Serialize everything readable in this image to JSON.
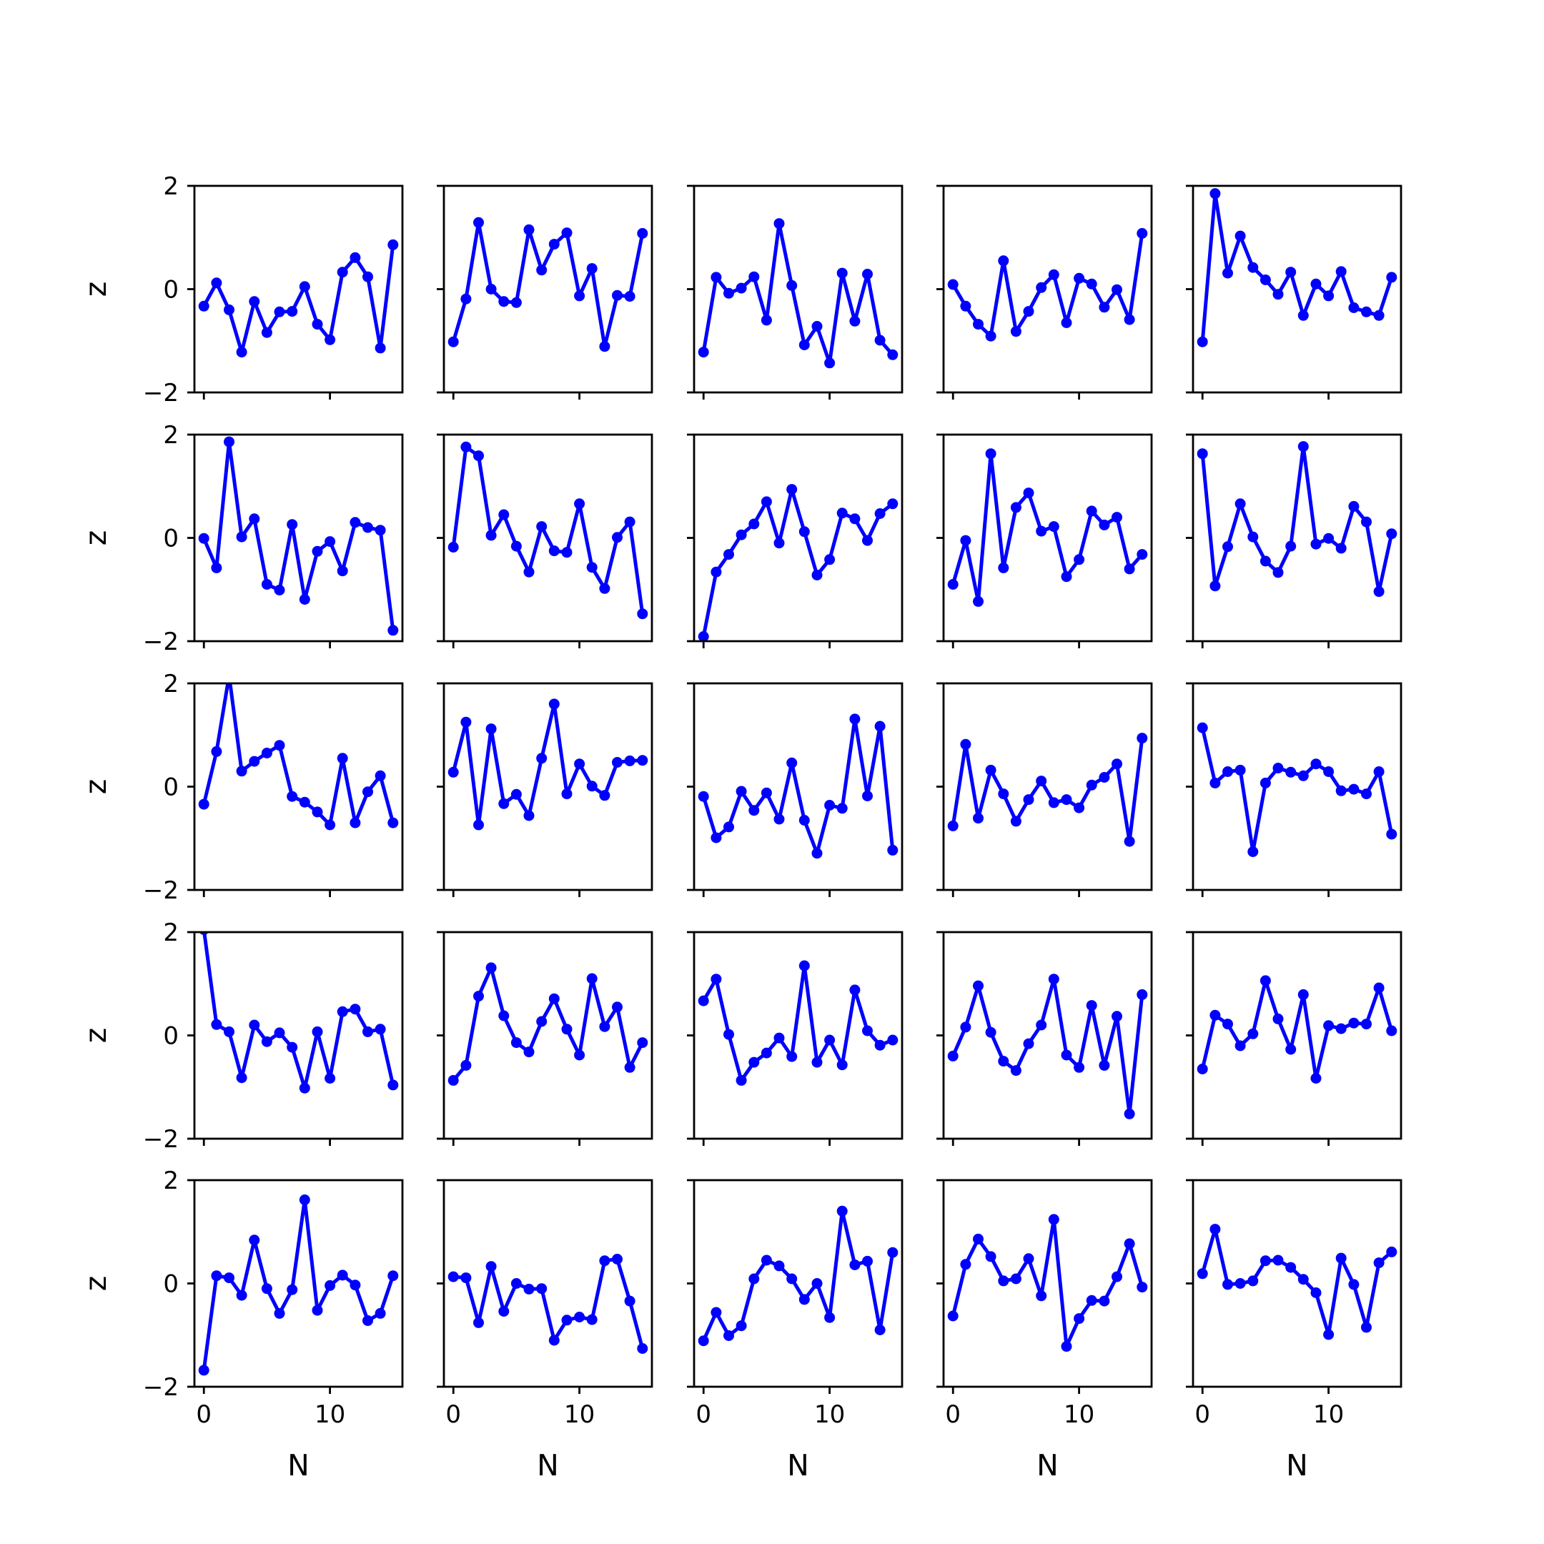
{
  "chart_data": {
    "type": "line",
    "layout": "5x5 grid of small multiples",
    "shared_x": true,
    "shared_y": true,
    "xlabel": "N",
    "ylabel": "z",
    "xlim": [
      -0.75,
      15.75
    ],
    "ylim": [
      -2,
      2
    ],
    "xticks": [
      0,
      10
    ],
    "xtick_labels": [
      "0",
      "10"
    ],
    "yticks": [
      2,
      0,
      -2
    ],
    "ytick_labels": [
      "2",
      "0",
      "−2"
    ],
    "color": "#0000ff",
    "marker": "circle",
    "grid": false,
    "x": [
      0,
      1,
      2,
      3,
      4,
      5,
      6,
      7,
      8,
      9,
      10,
      11,
      12,
      13,
      14,
      15
    ],
    "panels": [
      [
        -0.33,
        0.12,
        -0.4,
        -1.22,
        -0.24,
        -0.84,
        -0.44,
        -0.43,
        0.05,
        -0.68,
        -0.98,
        0.33,
        0.61,
        0.24,
        -1.14,
        0.86
      ],
      [
        -1.02,
        -0.19,
        1.29,
        0.0,
        -0.24,
        -0.26,
        1.15,
        0.37,
        0.87,
        1.09,
        -0.13,
        0.4,
        -1.11,
        -0.12,
        -0.14,
        1.08
      ],
      [
        -1.22,
        0.23,
        -0.08,
        0.02,
        0.24,
        -0.6,
        1.27,
        0.07,
        -1.08,
        -0.72,
        -1.43,
        0.31,
        -0.62,
        0.29,
        -0.99,
        -1.27
      ],
      [
        0.09,
        -0.33,
        -0.68,
        -0.91,
        0.55,
        -0.82,
        -0.43,
        0.03,
        0.28,
        -0.65,
        0.21,
        0.1,
        -0.35,
        -0.01,
        -0.59,
        1.08
      ],
      [
        -1.02,
        1.85,
        0.31,
        1.03,
        0.42,
        0.18,
        -0.1,
        0.33,
        -0.51,
        0.1,
        -0.13,
        0.34,
        -0.36,
        -0.44,
        -0.51,
        0.23
      ],
      [
        -0.01,
        -0.58,
        1.86,
        0.02,
        0.37,
        -0.9,
        -1.01,
        0.26,
        -1.19,
        -0.26,
        -0.07,
        -0.64,
        0.3,
        0.2,
        0.15,
        -1.79
      ],
      [
        -0.18,
        1.76,
        1.59,
        0.05,
        0.45,
        -0.16,
        -0.66,
        0.22,
        -0.25,
        -0.28,
        0.66,
        -0.57,
        -0.98,
        0.01,
        0.31,
        -1.47
      ],
      [
        -1.91,
        -0.66,
        -0.32,
        0.06,
        0.27,
        0.7,
        -0.1,
        0.94,
        0.12,
        -0.72,
        -0.42,
        0.48,
        0.37,
        -0.05,
        0.47,
        0.66
      ],
      [
        -0.9,
        -0.05,
        -1.23,
        1.63,
        -0.58,
        0.59,
        0.87,
        0.13,
        0.22,
        -0.75,
        -0.42,
        0.52,
        0.25,
        0.4,
        -0.6,
        -0.32
      ],
      [
        1.63,
        -0.93,
        -0.17,
        0.66,
        0.02,
        -0.45,
        -0.67,
        -0.16,
        1.77,
        -0.12,
        -0.01,
        -0.2,
        0.61,
        0.31,
        -1.04,
        0.08
      ],
      [
        -0.34,
        0.68,
        2.15,
        0.3,
        0.49,
        0.65,
        0.8,
        -0.19,
        -0.3,
        -0.49,
        -0.74,
        0.55,
        -0.7,
        -0.1,
        0.21,
        -0.7
      ],
      [
        0.28,
        1.25,
        -0.74,
        1.12,
        -0.33,
        -0.15,
        -0.56,
        0.55,
        1.6,
        -0.14,
        0.44,
        0.01,
        -0.17,
        0.47,
        0.5,
        0.51
      ],
      [
        -0.19,
        -0.99,
        -0.78,
        -0.09,
        -0.46,
        -0.12,
        -0.63,
        0.46,
        -0.65,
        -1.29,
        -0.36,
        -0.42,
        1.31,
        -0.18,
        1.17,
        -1.23
      ],
      [
        -0.76,
        0.82,
        -0.61,
        0.32,
        -0.14,
        -0.67,
        -0.25,
        0.11,
        -0.31,
        -0.25,
        -0.41,
        0.03,
        0.18,
        0.44,
        -1.06,
        0.94
      ],
      [
        1.14,
        0.07,
        0.29,
        0.32,
        -1.26,
        0.07,
        0.36,
        0.28,
        0.21,
        0.44,
        0.29,
        -0.08,
        -0.05,
        -0.14,
        0.29,
        -0.92
      ],
      [
        2.05,
        0.21,
        0.07,
        -0.82,
        0.2,
        -0.12,
        0.05,
        -0.23,
        -1.02,
        0.07,
        -0.83,
        0.46,
        0.51,
        0.07,
        0.12,
        -0.96
      ],
      [
        -0.87,
        -0.58,
        0.76,
        1.31,
        0.38,
        -0.14,
        -0.32,
        0.27,
        0.71,
        0.12,
        -0.38,
        1.1,
        0.17,
        0.55,
        -0.62,
        -0.14
      ],
      [
        0.67,
        1.09,
        0.02,
        -0.87,
        -0.52,
        -0.34,
        -0.05,
        -0.41,
        1.35,
        -0.52,
        -0.09,
        -0.57,
        0.88,
        0.09,
        -0.19,
        -0.09
      ],
      [
        -0.4,
        0.16,
        0.96,
        0.06,
        -0.5,
        -0.68,
        -0.16,
        0.2,
        1.09,
        -0.38,
        -0.62,
        0.58,
        -0.58,
        0.37,
        -1.52,
        0.79
      ],
      [
        -0.65,
        0.39,
        0.22,
        -0.2,
        0.03,
        1.06,
        0.32,
        -0.27,
        0.79,
        -0.83,
        0.19,
        0.13,
        0.24,
        0.22,
        0.92,
        0.09
      ],
      [
        -1.68,
        0.15,
        0.11,
        -0.23,
        0.84,
        -0.1,
        -0.58,
        -0.12,
        1.62,
        -0.52,
        -0.04,
        0.16,
        -0.03,
        -0.72,
        -0.58,
        0.15
      ],
      [
        0.13,
        0.11,
        -0.76,
        0.33,
        -0.54,
        0.0,
        -0.11,
        -0.1,
        -1.1,
        -0.71,
        -0.65,
        -0.7,
        0.44,
        0.47,
        -0.34,
        -1.26
      ],
      [
        -1.11,
        -0.56,
        -1.01,
        -0.82,
        0.09,
        0.45,
        0.34,
        0.09,
        -0.31,
        0.0,
        -0.66,
        1.4,
        0.36,
        0.43,
        -0.9,
        0.6
      ],
      [
        -0.63,
        0.37,
        0.86,
        0.52,
        0.05,
        0.09,
        0.48,
        -0.24,
        1.24,
        -1.22,
        -0.68,
        -0.33,
        -0.34,
        0.13,
        0.77,
        -0.07
      ],
      [
        0.19,
        1.05,
        -0.02,
        0.0,
        0.05,
        0.44,
        0.45,
        0.31,
        0.08,
        -0.18,
        -0.99,
        0.49,
        -0.02,
        -0.85,
        0.4,
        0.61
      ]
    ]
  }
}
